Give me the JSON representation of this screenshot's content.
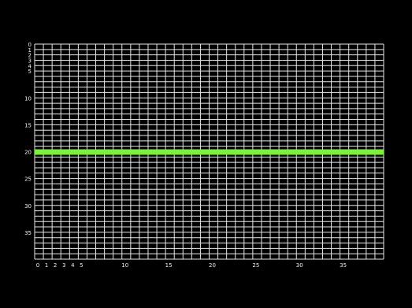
{
  "grid": {
    "background_color": "#000000",
    "line_color": "#e8e8e8",
    "highlight_color": "#7cf03c",
    "columns": 40,
    "rows": 40,
    "highlight_row": 20,
    "x_tick_labels": [
      "0",
      "1",
      "2",
      "3",
      "4",
      "5",
      "10",
      "15",
      "20",
      "25",
      "30",
      "35"
    ],
    "y_tick_labels": [
      "0",
      "1",
      "2",
      "3",
      "4",
      "5",
      "10",
      "15",
      "20",
      "25",
      "30",
      "35"
    ]
  }
}
